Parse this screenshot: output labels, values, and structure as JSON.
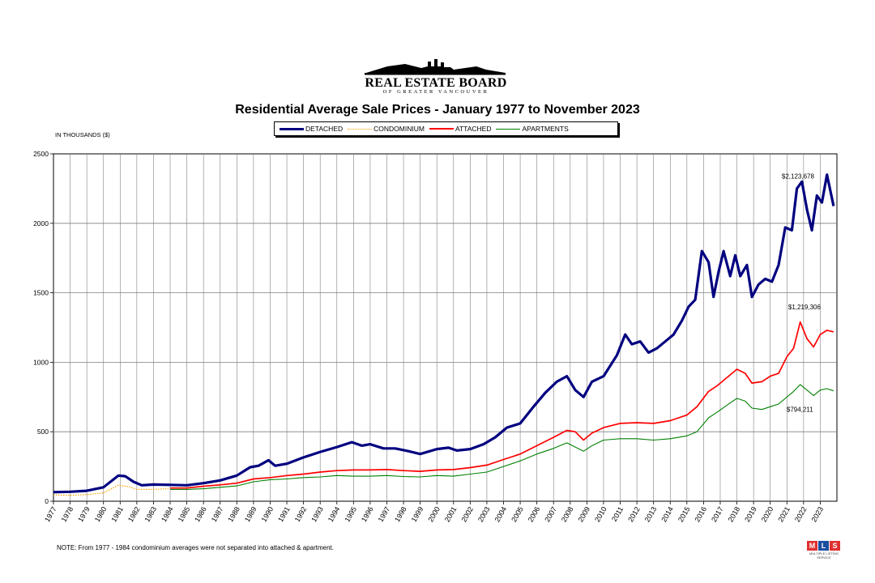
{
  "logo": {
    "name": "REAL ESTATE BOARD",
    "sub": "OF GREATER VANCOUVER"
  },
  "mls_logo": {
    "letters": [
      "M",
      "L",
      "S"
    ],
    "caption": "MULTIPLE LISTING SERVICE"
  },
  "note": "NOTE:  From 1977 - 1984 condominium averages were not separated into attached & apartment.",
  "chart_data": {
    "type": "line",
    "title": "Residential Average Sale Prices  -  January 1977 to November 2023",
    "ylabel": "IN THOUSANDS ($)",
    "xlabel": "",
    "ylim": [
      0,
      2500
    ],
    "yticks": [
      "0",
      "500",
      "1000",
      "1500",
      "2000",
      "2500"
    ],
    "grid": true,
    "legend_position": "top-center",
    "categories": [
      "1977",
      "1978",
      "1979",
      "1980",
      "1981",
      "1982",
      "1983",
      "1984",
      "1985",
      "1986",
      "1987",
      "1988",
      "1989",
      "1990",
      "1991",
      "1992",
      "1993",
      "1994",
      "1995",
      "1996",
      "1997",
      "1998",
      "1999",
      "2000",
      "2001",
      "2002",
      "2003",
      "2004",
      "2005",
      "2006",
      "2007",
      "2008",
      "2009",
      "2010",
      "2011",
      "2012",
      "2013",
      "2014",
      "2015",
      "2016",
      "2017",
      "2018",
      "2019",
      "2020",
      "2021",
      "2022",
      "2023"
    ],
    "series": [
      {
        "name": "DETACHED",
        "color": "#000080",
        "style": "solid",
        "width": 3.2,
        "points": [
          [
            1977,
            65
          ],
          [
            1978,
            68
          ],
          [
            1979,
            75
          ],
          [
            1980,
            100
          ],
          [
            1980.9,
            185
          ],
          [
            1981.3,
            180
          ],
          [
            1981.8,
            140
          ],
          [
            1982.3,
            115
          ],
          [
            1983,
            120
          ],
          [
            1984,
            118
          ],
          [
            1985,
            115
          ],
          [
            1986,
            130
          ],
          [
            1987,
            150
          ],
          [
            1988,
            185
          ],
          [
            1988.8,
            245
          ],
          [
            1989.3,
            255
          ],
          [
            1989.9,
            295
          ],
          [
            1990.3,
            255
          ],
          [
            1991,
            270
          ],
          [
            1992,
            315
          ],
          [
            1993,
            355
          ],
          [
            1994,
            390
          ],
          [
            1994.9,
            425
          ],
          [
            1995.5,
            400
          ],
          [
            1996,
            410
          ],
          [
            1996.8,
            380
          ],
          [
            1997.5,
            380
          ],
          [
            1998.3,
            360
          ],
          [
            1999,
            340
          ],
          [
            2000,
            375
          ],
          [
            2000.7,
            385
          ],
          [
            2001.2,
            365
          ],
          [
            2002,
            375
          ],
          [
            2002.8,
            410
          ],
          [
            2003.5,
            460
          ],
          [
            2004.2,
            530
          ],
          [
            2005,
            560
          ],
          [
            2005.8,
            680
          ],
          [
            2006.5,
            780
          ],
          [
            2007.2,
            860
          ],
          [
            2007.8,
            900
          ],
          [
            2008.3,
            800
          ],
          [
            2008.8,
            750
          ],
          [
            2009.3,
            860
          ],
          [
            2010,
            900
          ],
          [
            2010.8,
            1050
          ],
          [
            2011.3,
            1200
          ],
          [
            2011.7,
            1130
          ],
          [
            2012.2,
            1150
          ],
          [
            2012.7,
            1070
          ],
          [
            2013.2,
            1100
          ],
          [
            2013.7,
            1150
          ],
          [
            2014.2,
            1200
          ],
          [
            2014.7,
            1300
          ],
          [
            2015.1,
            1400
          ],
          [
            2015.5,
            1450
          ],
          [
            2015.9,
            1800
          ],
          [
            2016.3,
            1720
          ],
          [
            2016.6,
            1470
          ],
          [
            2016.9,
            1650
          ],
          [
            2017.2,
            1800
          ],
          [
            2017.6,
            1620
          ],
          [
            2017.9,
            1770
          ],
          [
            2018.2,
            1620
          ],
          [
            2018.6,
            1700
          ],
          [
            2018.9,
            1470
          ],
          [
            2019.3,
            1560
          ],
          [
            2019.7,
            1600
          ],
          [
            2020.1,
            1580
          ],
          [
            2020.5,
            1700
          ],
          [
            2020.9,
            1970
          ],
          [
            2021.3,
            1950
          ],
          [
            2021.6,
            2250
          ],
          [
            2021.9,
            2300
          ],
          [
            2022.2,
            2100
          ],
          [
            2022.5,
            1950
          ],
          [
            2022.8,
            2200
          ],
          [
            2023.1,
            2150
          ],
          [
            2023.4,
            2350
          ],
          [
            2023.8,
            2124
          ]
        ]
      },
      {
        "name": "CONDOMINIUM",
        "color": "#ffa500",
        "style": "dotted",
        "width": 1.2,
        "points": [
          [
            1977,
            45
          ],
          [
            1978,
            42
          ],
          [
            1979,
            48
          ],
          [
            1980,
            60
          ],
          [
            1980.9,
            115
          ],
          [
            1981.5,
            105
          ],
          [
            1982,
            85
          ],
          [
            1983,
            85
          ],
          [
            1983.9,
            90
          ]
        ]
      },
      {
        "name": "ATTACHED",
        "color": "#ff0000",
        "style": "solid",
        "width": 1.7,
        "points": [
          [
            1984,
            95
          ],
          [
            1985,
            95
          ],
          [
            1986,
            108
          ],
          [
            1987,
            118
          ],
          [
            1988,
            130
          ],
          [
            1989,
            160
          ],
          [
            1990,
            170
          ],
          [
            1991,
            185
          ],
          [
            1992,
            195
          ],
          [
            1993,
            210
          ],
          [
            1994,
            220
          ],
          [
            1995,
            225
          ],
          [
            1996,
            225
          ],
          [
            1997,
            228
          ],
          [
            1998,
            220
          ],
          [
            1999,
            215
          ],
          [
            2000,
            225
          ],
          [
            2001,
            228
          ],
          [
            2002,
            242
          ],
          [
            2003,
            260
          ],
          [
            2004,
            300
          ],
          [
            2005,
            340
          ],
          [
            2006,
            400
          ],
          [
            2007,
            460
          ],
          [
            2007.8,
            510
          ],
          [
            2008.3,
            500
          ],
          [
            2008.8,
            440
          ],
          [
            2009.3,
            490
          ],
          [
            2010,
            530
          ],
          [
            2011,
            560
          ],
          [
            2012,
            565
          ],
          [
            2013,
            560
          ],
          [
            2014,
            580
          ],
          [
            2015,
            620
          ],
          [
            2015.6,
            680
          ],
          [
            2016.3,
            790
          ],
          [
            2016.8,
            830
          ],
          [
            2017.5,
            900
          ],
          [
            2018,
            950
          ],
          [
            2018.5,
            920
          ],
          [
            2018.9,
            850
          ],
          [
            2019.5,
            860
          ],
          [
            2020,
            900
          ],
          [
            2020.5,
            920
          ],
          [
            2021,
            1040
          ],
          [
            2021.4,
            1100
          ],
          [
            2021.8,
            1290
          ],
          [
            2022.2,
            1170
          ],
          [
            2022.6,
            1110
          ],
          [
            2023,
            1200
          ],
          [
            2023.4,
            1230
          ],
          [
            2023.8,
            1219
          ]
        ]
      },
      {
        "name": "APARTMENTS",
        "color": "#008000",
        "style": "solid",
        "width": 1.1,
        "points": [
          [
            1984,
            85
          ],
          [
            1985,
            85
          ],
          [
            1986,
            90
          ],
          [
            1987,
            100
          ],
          [
            1988,
            110
          ],
          [
            1989,
            140
          ],
          [
            1990,
            155
          ],
          [
            1991,
            160
          ],
          [
            1992,
            170
          ],
          [
            1993,
            175
          ],
          [
            1994,
            185
          ],
          [
            1995,
            180
          ],
          [
            1996,
            180
          ],
          [
            1997,
            185
          ],
          [
            1998,
            178
          ],
          [
            1999,
            175
          ],
          [
            2000,
            185
          ],
          [
            2001,
            180
          ],
          [
            2002,
            195
          ],
          [
            2003,
            210
          ],
          [
            2004,
            250
          ],
          [
            2005,
            290
          ],
          [
            2006,
            340
          ],
          [
            2007,
            380
          ],
          [
            2007.8,
            420
          ],
          [
            2008.3,
            390
          ],
          [
            2008.8,
            360
          ],
          [
            2009.3,
            400
          ],
          [
            2010,
            440
          ],
          [
            2011,
            450
          ],
          [
            2012,
            450
          ],
          [
            2013,
            440
          ],
          [
            2014,
            450
          ],
          [
            2015,
            470
          ],
          [
            2015.6,
            500
          ],
          [
            2016.3,
            600
          ],
          [
            2016.8,
            640
          ],
          [
            2017.5,
            700
          ],
          [
            2018,
            740
          ],
          [
            2018.5,
            720
          ],
          [
            2018.9,
            670
          ],
          [
            2019.5,
            660
          ],
          [
            2020,
            680
          ],
          [
            2020.5,
            700
          ],
          [
            2021,
            750
          ],
          [
            2021.4,
            790
          ],
          [
            2021.8,
            840
          ],
          [
            2022.2,
            800
          ],
          [
            2022.6,
            760
          ],
          [
            2023,
            800
          ],
          [
            2023.4,
            810
          ],
          [
            2023.8,
            794
          ]
        ]
      }
    ],
    "annotations": [
      {
        "text": "$2,123,678",
        "x": 2023.8,
        "y": 2124,
        "series": "DETACHED"
      },
      {
        "text": "$1,219,306",
        "x": 2023.8,
        "y": 1219,
        "series": "ATTACHED"
      },
      {
        "text": "$794,211",
        "x": 2023.8,
        "y": 794,
        "series": "APARTMENTS"
      }
    ]
  }
}
